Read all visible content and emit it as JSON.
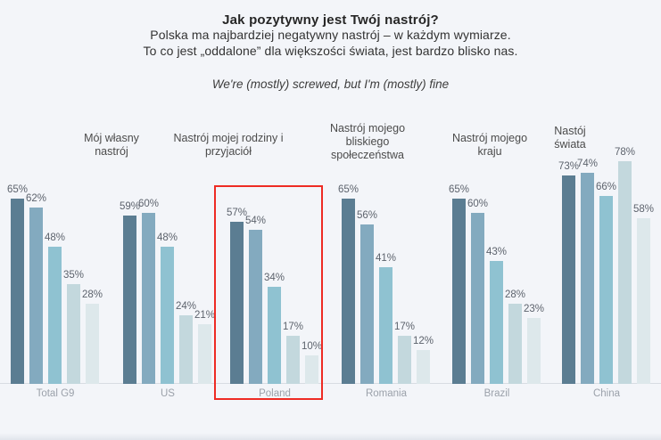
{
  "header": {
    "title": "Jak pozytywny jest Twój nastrój?",
    "subtitle_line1": "Polska ma najbardziej negatywny nastrój – w każdym wymiarze.",
    "subtitle_line2": "To co jest „oddalone” dla większości świata, jest bardzo blisko nas.",
    "tagline": "We're (mostly) screwed, but I'm (mostly) fine"
  },
  "chart_data": {
    "type": "bar",
    "title": "Jak pozytywny jest Twój nastrój?",
    "categories": [
      "Total G9",
      "US",
      "Poland",
      "Romania",
      "Brazil",
      "China"
    ],
    "series": [
      {
        "name": "Mój własny nastrój",
        "color": "#5b7d92",
        "values": [
          65,
          59,
          57,
          65,
          65,
          73
        ]
      },
      {
        "name": "Nastrój mojej rodziny i przyjaciół",
        "color": "#83aabf",
        "values": [
          62,
          60,
          54,
          56,
          60,
          74
        ]
      },
      {
        "name": "Nastrój mojego bliskiego społeczeństwa",
        "color": "#8fc2d1",
        "values": [
          48,
          48,
          34,
          41,
          43,
          66
        ]
      },
      {
        "name": "Nastrój mojego kraju",
        "color": "#c3d8dd",
        "values": [
          35,
          24,
          17,
          17,
          28,
          78
        ]
      },
      {
        "name": "Nastój świata",
        "color": "#dde8eb",
        "values": [
          28,
          21,
          10,
          12,
          23,
          58
        ]
      }
    ],
    "value_suffix": "%",
    "ylim": [
      0,
      100
    ],
    "grid": false,
    "legend_position": "top",
    "highlight": {
      "category": "Poland",
      "color": "#ee2b24"
    },
    "colors": {
      "background": "#f3f5f9",
      "value_label": "#5d636d",
      "category_label": "#9ba1aa",
      "axis_line": "#d8dce2"
    }
  }
}
